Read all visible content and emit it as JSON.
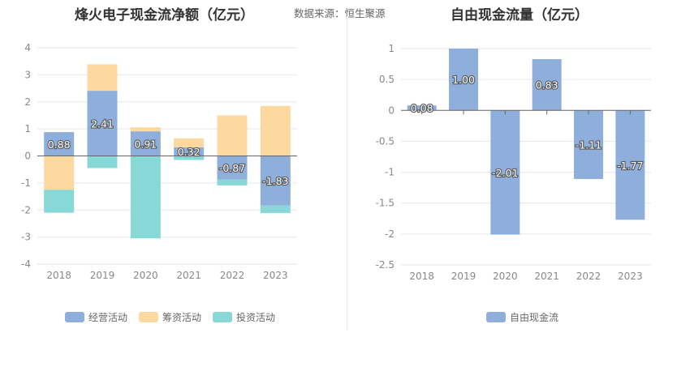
{
  "source_label": "数据来源：恒生聚源",
  "chart_data": [
    {
      "type": "bar",
      "stacked": true,
      "title": "烽火电子现金流净额（亿元）",
      "categories": [
        "2018",
        "2019",
        "2020",
        "2021",
        "2022",
        "2023"
      ],
      "ylim": [
        -4,
        4
      ],
      "yticks": [
        -4,
        -3,
        -2,
        -1,
        0,
        1,
        2,
        3,
        4
      ],
      "grid": true,
      "legend_position": "bottom",
      "series": [
        {
          "name": "经营活动",
          "color": "#8eaedb",
          "values": [
            0.88,
            2.41,
            0.91,
            0.32,
            -0.87,
            -1.83
          ],
          "show_labels": true
        },
        {
          "name": "筹资活动",
          "color": "#fdd9a0",
          "values": [
            -1.25,
            0.98,
            0.15,
            0.33,
            1.5,
            1.85
          ],
          "show_labels": false
        },
        {
          "name": "投资活动",
          "color": "#88d8d8",
          "values": [
            -0.85,
            -0.45,
            -3.05,
            -0.15,
            -0.22,
            -0.28
          ],
          "show_labels": false
        }
      ]
    },
    {
      "type": "bar",
      "title": "自由现金流量（亿元）",
      "categories": [
        "2018",
        "2019",
        "2020",
        "2021",
        "2022",
        "2023"
      ],
      "ylim": [
        -2.5,
        1
      ],
      "yticks": [
        -2.5,
        -2,
        -1.5,
        -1,
        -0.5,
        0,
        0.5,
        1
      ],
      "grid": true,
      "legend_position": "bottom",
      "series": [
        {
          "name": "自由现金流",
          "color": "#8eaedb",
          "values": [
            0.08,
            1.0,
            -2.01,
            0.83,
            -1.11,
            -1.77
          ],
          "labels": [
            "0.08",
            "1.00",
            "-2.01",
            "0.83",
            "-1.11",
            "-1.77"
          ],
          "show_labels": true
        }
      ]
    }
  ]
}
